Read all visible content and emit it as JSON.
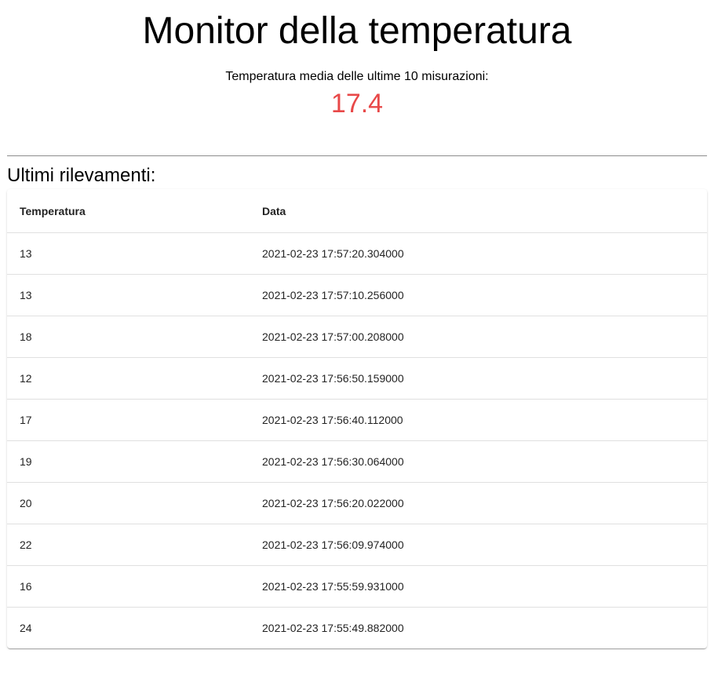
{
  "header": {
    "title": "Monitor della temperatura",
    "average_label": "Temperatura media delle ultime 10 misurazioni:",
    "average_value": "17.4",
    "average_color": "#e84848"
  },
  "readings": {
    "section_title": "Ultimi rilevamenti:",
    "columns": [
      "Temperatura",
      "Data"
    ],
    "rows": [
      {
        "temperatura": "13",
        "data": "2021-02-23 17:57:20.304000"
      },
      {
        "temperatura": "13",
        "data": "2021-02-23 17:57:10.256000"
      },
      {
        "temperatura": "18",
        "data": "2021-02-23 17:57:00.208000"
      },
      {
        "temperatura": "12",
        "data": "2021-02-23 17:56:50.159000"
      },
      {
        "temperatura": "17",
        "data": "2021-02-23 17:56:40.112000"
      },
      {
        "temperatura": "19",
        "data": "2021-02-23 17:56:30.064000"
      },
      {
        "temperatura": "20",
        "data": "2021-02-23 17:56:20.022000"
      },
      {
        "temperatura": "22",
        "data": "2021-02-23 17:56:09.974000"
      },
      {
        "temperatura": "16",
        "data": "2021-02-23 17:55:59.931000"
      },
      {
        "temperatura": "24",
        "data": "2021-02-23 17:55:49.882000"
      }
    ]
  }
}
